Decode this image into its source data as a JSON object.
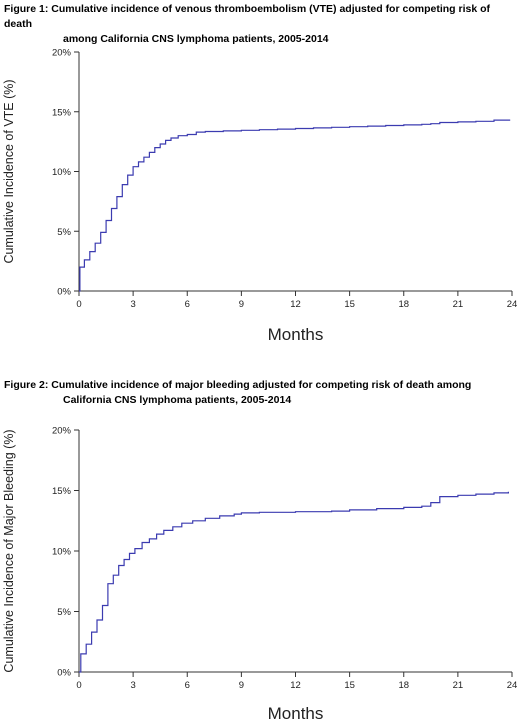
{
  "captions": [
    {
      "label": "Figure 1:",
      "line1": "Cumulative incidence of venous thromboembolism (VTE) adjusted for competing risk of death",
      "line2": "among California CNS lymphoma patients, 2005-2014"
    },
    {
      "label": "Figure 2:",
      "line1": "Cumulative incidence of major bleeding adjusted for competing risk of death among",
      "line2": "California CNS lymphoma patients, 2005-2014"
    }
  ],
  "chart_data": [
    {
      "type": "line",
      "title": "",
      "xlabel": "Months",
      "ylabel": "Cumulative Incidence of VTE (%)",
      "xlim": [
        0,
        24
      ],
      "ylim": [
        0,
        20
      ],
      "x_ticks": [
        0,
        3,
        6,
        9,
        12,
        15,
        18,
        21,
        24
      ],
      "y_ticks": [
        0,
        5,
        10,
        15,
        20
      ],
      "y_tick_labels": [
        "0%",
        "5%",
        "10%",
        "15%",
        "20%"
      ],
      "step": true,
      "color": "#3b3bb0",
      "series": [
        {
          "x": [
            0,
            0.05,
            0.3,
            0.6,
            0.9,
            1.2,
            1.5,
            1.8,
            2.1,
            2.4,
            2.7,
            3.0,
            3.3,
            3.6,
            3.9,
            4.2,
            4.5,
            4.8,
            5.1,
            5.5,
            6.0,
            6.5,
            7.0,
            8.0,
            9.0,
            10.0,
            11.0,
            12.0,
            13.0,
            14.0,
            15.0,
            16.0,
            17.0,
            18.0,
            19.0,
            19.5,
            20.0,
            21.0,
            22.0,
            23.0,
            23.9
          ],
          "y": [
            0,
            2.0,
            2.6,
            3.3,
            4.0,
            4.9,
            5.9,
            6.9,
            7.9,
            8.9,
            9.7,
            10.4,
            10.8,
            11.2,
            11.6,
            12.0,
            12.3,
            12.6,
            12.8,
            13.0,
            13.1,
            13.3,
            13.35,
            13.4,
            13.45,
            13.5,
            13.55,
            13.6,
            13.65,
            13.7,
            13.75,
            13.8,
            13.85,
            13.9,
            13.95,
            14.0,
            14.1,
            14.15,
            14.2,
            14.3,
            14.3
          ]
        }
      ]
    },
    {
      "type": "line",
      "title": "",
      "xlabel": "Months",
      "ylabel": "Cumulative Incidence of Major Bleeding (%)",
      "xlim": [
        0,
        24
      ],
      "ylim": [
        0,
        20
      ],
      "x_ticks": [
        0,
        3,
        6,
        9,
        12,
        15,
        18,
        21,
        24
      ],
      "y_ticks": [
        0,
        5,
        10,
        15,
        20
      ],
      "y_tick_labels": [
        "0%",
        "5%",
        "10%",
        "15%",
        "20%"
      ],
      "step": true,
      "color": "#3b3bb0",
      "series": [
        {
          "x": [
            0,
            0.1,
            0.4,
            0.7,
            1.0,
            1.3,
            1.6,
            1.9,
            2.2,
            2.5,
            2.8,
            3.1,
            3.5,
            3.9,
            4.3,
            4.7,
            5.2,
            5.7,
            6.3,
            7.0,
            7.8,
            8.6,
            9.0,
            10.0,
            12.0,
            14.0,
            15.0,
            16.5,
            18.0,
            19.0,
            19.5,
            20.0,
            21.0,
            22.0,
            23.0,
            23.8
          ],
          "y": [
            0,
            1.5,
            2.3,
            3.3,
            4.3,
            5.5,
            7.3,
            8.0,
            8.8,
            9.3,
            9.8,
            10.2,
            10.7,
            11.0,
            11.4,
            11.7,
            12.0,
            12.3,
            12.5,
            12.7,
            12.9,
            13.05,
            13.15,
            13.2,
            13.25,
            13.3,
            13.4,
            13.5,
            13.6,
            13.7,
            14.0,
            14.5,
            14.6,
            14.7,
            14.8,
            14.9
          ]
        }
      ]
    }
  ]
}
